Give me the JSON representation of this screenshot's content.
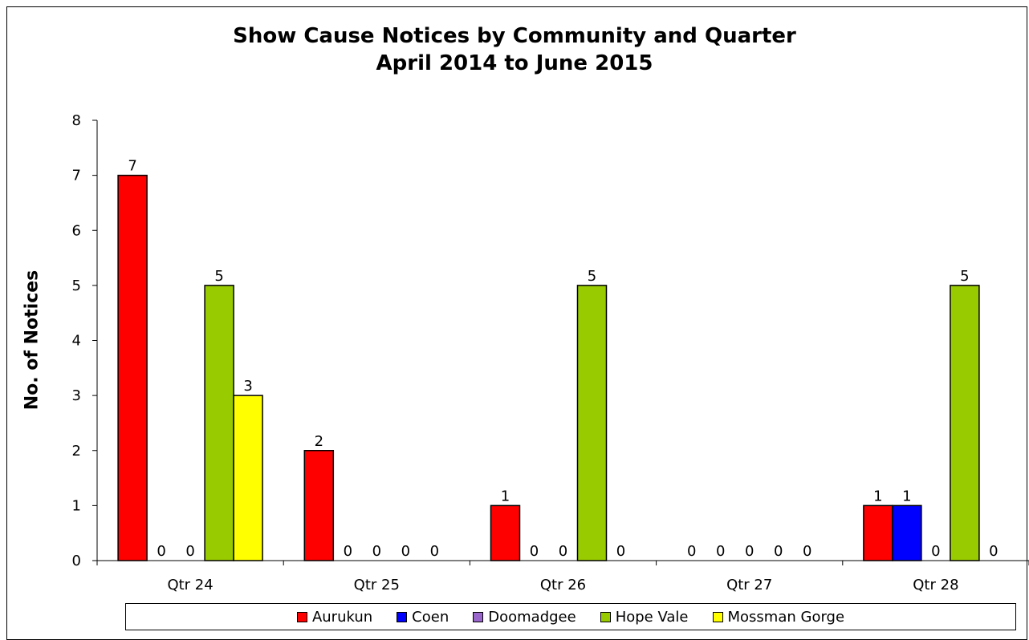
{
  "chart_data": {
    "type": "bar",
    "title": "Show Cause Notices by Community and Quarter",
    "subtitle": "April 2014 to June 2015",
    "xlabel": "",
    "ylabel": "No. of Notices",
    "ylim": [
      0,
      8
    ],
    "yticks": [
      "0",
      "1",
      "2",
      "3",
      "4",
      "5",
      "6",
      "7",
      "8"
    ],
    "categories": [
      "Qtr 24",
      "Qtr 25",
      "Qtr 26",
      "Qtr 27",
      "Qtr 28"
    ],
    "series": [
      {
        "name": "Aurukun",
        "color": "#FF0000",
        "values": [
          7,
          2,
          1,
          0,
          1
        ]
      },
      {
        "name": "Coen",
        "color": "#0000FF",
        "values": [
          0,
          0,
          0,
          0,
          1
        ]
      },
      {
        "name": "Doomadgee",
        "color": "#9966CC",
        "values": [
          0,
          0,
          0,
          0,
          0
        ]
      },
      {
        "name": "Hope Vale",
        "color": "#99CC00",
        "values": [
          5,
          0,
          5,
          0,
          5
        ]
      },
      {
        "name": "Mossman Gorge",
        "color": "#FFFF00",
        "values": [
          3,
          0,
          0,
          0,
          0
        ]
      }
    ],
    "grid": false,
    "legend_position": "bottom",
    "data_labels": true
  }
}
